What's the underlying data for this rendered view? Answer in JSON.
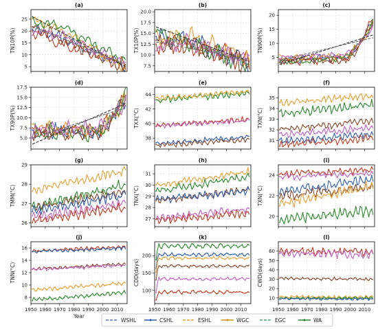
{
  "figure": {
    "xlabel": "Year",
    "legend": [
      {
        "name": "WSHL",
        "color": "#4d7fd0",
        "dash": true
      },
      {
        "name": "CSHL",
        "color": "#2e5fb0",
        "dash": false
      },
      {
        "name": "ESHL",
        "color": "#e8a030",
        "dash": true
      },
      {
        "name": "WGC",
        "color": "#d8901a",
        "dash": false
      },
      {
        "name": "EGC",
        "color": "#4aa870",
        "dash": true
      },
      {
        "name": "WA",
        "color": "#2b8a2b",
        "dash": false
      }
    ]
  },
  "chart_data": [
    {
      "type": "line",
      "title": "(a)",
      "ylabel": "TN10P(%)",
      "xlim": [
        1950,
        2017
      ],
      "ylim": [
        3,
        29
      ],
      "yticks": [
        5,
        10,
        15,
        20,
        25
      ],
      "xticks": [],
      "xticklabels": false,
      "series_style": "converging",
      "lines": [
        [
          21,
          17,
          5,
          3,
          0.8,
          "#2e5fb0"
        ],
        [
          20,
          14,
          6,
          2,
          0.8,
          "#c03a1e"
        ],
        [
          25,
          20,
          4,
          0,
          0.7,
          "#e8a030"
        ],
        [
          24,
          22,
          7,
          1,
          0.7,
          "#2b8a2b"
        ],
        [
          22,
          16,
          5,
          4,
          0.9,
          "#8a4a2a"
        ],
        [
          20,
          18,
          6,
          5,
          0.6,
          "#c060c0"
        ]
      ],
      "dashed_trends": [
        [
          26,
          5
        ],
        [
          22,
          6
        ]
      ]
    },
    {
      "type": "line",
      "title": "(b)",
      "ylabel": "TX10P(%)",
      "xlim": [
        1950,
        2017
      ],
      "ylim": [
        6.2,
        20.5
      ],
      "yticks": [
        7.5,
        10.0,
        12.5,
        15.0,
        17.5,
        20.0
      ],
      "xticks": [],
      "xticklabels": false,
      "series_style": "converging",
      "lines": [
        [
          14,
          13.5,
          8,
          3,
          0.8,
          "#2e5fb0"
        ],
        [
          13,
          12,
          8.5,
          2,
          0.8,
          "#c03a1e"
        ],
        [
          14,
          14.5,
          9,
          1,
          0.7,
          "#e8a030"
        ],
        [
          15,
          13,
          7.5,
          0,
          0.7,
          "#2b8a2b"
        ],
        [
          13,
          12.5,
          8,
          4,
          0.8,
          "#8a4a2a"
        ],
        [
          12,
          13,
          9,
          5,
          0.6,
          "#c060c0"
        ]
      ],
      "dashed_trends": [
        [
          16.5,
          8.5
        ],
        [
          13,
          9
        ]
      ]
    },
    {
      "type": "line",
      "title": "(c)",
      "ylabel": "TN90P(%)",
      "xlim": [
        1950,
        2017
      ],
      "ylim": [
        0,
        22
      ],
      "yticks": [
        5,
        10,
        15,
        20
      ],
      "xticks": [],
      "xticklabels": false,
      "series_style": "rising",
      "lines": [
        [
          4,
          5,
          18,
          3,
          0.8,
          "#2e5fb0"
        ],
        [
          3.5,
          4.5,
          19,
          2,
          0.8,
          "#c03a1e"
        ],
        [
          4.5,
          5.5,
          17,
          1,
          0.7,
          "#e8a030"
        ],
        [
          3,
          5,
          17.5,
          0,
          0.7,
          "#2b8a2b"
        ],
        [
          4,
          4,
          18,
          4,
          0.8,
          "#8a4a2a"
        ],
        [
          5,
          6,
          16,
          5,
          0.6,
          "#c060c0"
        ]
      ],
      "dashed_trends": [
        [
          2.5,
          13
        ],
        [
          4,
          12
        ]
      ]
    },
    {
      "type": "line",
      "title": "(d)",
      "ylabel": "TX90P(%)",
      "xlim": [
        1950,
        2017
      ],
      "ylim": [
        2.3,
        17.5
      ],
      "yticks": [
        5.0,
        7.5,
        10.0,
        12.5,
        15.0,
        17.5
      ],
      "xticks": [],
      "xticklabels": true,
      "series_style": "rising",
      "lines": [
        [
          7,
          6.5,
          15,
          3,
          1.2,
          "#2e5fb0"
        ],
        [
          6.5,
          7,
          15.5,
          2,
          1.1,
          "#c03a1e"
        ],
        [
          7.5,
          7,
          14.5,
          1,
          1.1,
          "#e8a030"
        ],
        [
          6,
          6.5,
          15,
          0,
          1.2,
          "#2b8a2b"
        ],
        [
          6.5,
          6,
          15.5,
          4,
          1.0,
          "#8a4a2a"
        ],
        [
          7,
          7.5,
          14,
          5,
          1.0,
          "#c060c0"
        ]
      ],
      "dashed_trends": [
        [
          3.5,
          13.5
        ],
        [
          5,
          12.5
        ]
      ]
    },
    {
      "type": "line",
      "title": "(e)",
      "ylabel": "TXX(°C)",
      "xlim": [
        1950,
        2017
      ],
      "ylim": [
        36.5,
        45
      ],
      "yticks": [
        38,
        40,
        42,
        44
      ],
      "xticks": [],
      "xticklabels": false,
      "series_style": "flat",
      "lines": [
        [
          43.2,
          44.2,
          0.25,
          "#2b8a2b"
        ],
        [
          43.5,
          44.4,
          0.2,
          "#e8a030"
        ],
        [
          39.8,
          40.6,
          0.2,
          "#c03a1e"
        ],
        [
          39.7,
          40.4,
          0.2,
          "#c060c0"
        ],
        [
          37.2,
          38.2,
          0.2,
          "#2e5fb0"
        ],
        [
          37.0,
          37.8,
          0.2,
          "#8a4a2a"
        ]
      ]
    },
    {
      "type": "line",
      "title": "(f)",
      "ylabel": "TXN(°C)",
      "xlim": [
        1950,
        2017
      ],
      "ylim": [
        30.2,
        36
      ],
      "yticks": [
        31,
        32,
        33,
        34,
        35
      ],
      "xticks": [],
      "xticklabels": false,
      "series_style": "flat",
      "lines": [
        [
          34.5,
          35.2,
          0.2,
          "#e8a030"
        ],
        [
          33.5,
          34.4,
          0.25,
          "#2b8a2b"
        ],
        [
          32.0,
          32.9,
          0.2,
          "#8a4a2a"
        ],
        [
          31.5,
          32.2,
          0.2,
          "#c060c0"
        ],
        [
          30.9,
          31.6,
          0.2,
          "#2e5fb0"
        ],
        [
          30.6,
          31.2,
          0.2,
          "#c03a1e"
        ]
      ]
    },
    {
      "type": "line",
      "title": "(g)",
      "ylabel": "TMM(°C)",
      "xlim": [
        1950,
        2017
      ],
      "ylim": [
        25.8,
        29
      ],
      "yticks": [
        26,
        27,
        28,
        29
      ],
      "xticks": [],
      "xticklabels": false,
      "series_style": "flat",
      "lines": [
        [
          27.7,
          28.7,
          0.15,
          "#e8a030"
        ],
        [
          26.8,
          28.0,
          0.15,
          "#2b8a2b"
        ],
        [
          26.8,
          27.6,
          0.15,
          "#8a4a2a"
        ],
        [
          26.6,
          27.4,
          0.15,
          "#2e5fb0"
        ],
        [
          26.3,
          27.0,
          0.15,
          "#c060c0"
        ],
        [
          26.1,
          26.8,
          0.15,
          "#c03a1e"
        ]
      ]
    },
    {
      "type": "line",
      "title": "(h)",
      "ylabel": "TNX(°C)",
      "xlim": [
        1950,
        2017
      ],
      "ylim": [
        26.3,
        31.8
      ],
      "yticks": [
        27,
        28,
        29,
        30,
        31
      ],
      "xticks": [],
      "xticklabels": false,
      "series_style": "flat",
      "lines": [
        [
          30.0,
          31.2,
          0.2,
          "#e8a030"
        ],
        [
          29.5,
          30.7,
          0.2,
          "#2b8a2b"
        ],
        [
          28.6,
          29.6,
          0.2,
          "#8a4a2a"
        ],
        [
          28.7,
          29.5,
          0.2,
          "#2e5fb0"
        ],
        [
          27.1,
          27.9,
          0.2,
          "#c060c0"
        ],
        [
          26.8,
          27.5,
          0.2,
          "#c03a1e"
        ]
      ]
    },
    {
      "type": "line",
      "title": "(i)",
      "ylabel": "TXN(°C)",
      "xlim": [
        1950,
        2017
      ],
      "ylim": [
        19,
        25
      ],
      "yticks": [
        20,
        22,
        24
      ],
      "xticks": [],
      "xticklabels": false,
      "series_style": "flat",
      "lines": [
        [
          24.1,
          24.5,
          0.2,
          "#c03a1e"
        ],
        [
          23.8,
          24.2,
          0.2,
          "#c060c0"
        ],
        [
          22.4,
          23.6,
          0.25,
          "#2e5fb0"
        ],
        [
          21.9,
          22.9,
          0.3,
          "#8a4a2a"
        ],
        [
          21.2,
          22.9,
          0.3,
          "#e8a030"
        ],
        [
          19.6,
          20.6,
          0.3,
          "#2b8a2b"
        ]
      ]
    },
    {
      "type": "line",
      "title": "(j)",
      "ylabel": "TNN(°C)",
      "xlim": [
        1950,
        2017
      ],
      "ylim": [
        7,
        17
      ],
      "yticks": [
        8,
        10,
        12,
        14,
        16
      ],
      "xticks": [
        1950,
        1960,
        1970,
        1980,
        1990,
        2000,
        2010
      ],
      "xticklabels": true,
      "series_style": "flat",
      "lines": [
        [
          15.5,
          16.2,
          0.15,
          "#c03a1e"
        ],
        [
          15.4,
          16.0,
          0.15,
          "#2e5fb0"
        ],
        [
          12.6,
          13.4,
          0.15,
          "#8a4a2a"
        ],
        [
          12.5,
          13.2,
          0.15,
          "#c060c0"
        ],
        [
          9.2,
          10.3,
          0.2,
          "#e8a030"
        ],
        [
          7.6,
          8.8,
          0.2,
          "#2b8a2b"
        ]
      ]
    },
    {
      "type": "line",
      "title": "(k)",
      "ylabel": "CDD(days)",
      "xlim": [
        1950,
        2017
      ],
      "ylim": [
        62,
        240
      ],
      "yticks": [
        100,
        150,
        200
      ],
      "xticks": [
        1950,
        1960,
        1970,
        1980,
        1990,
        2000,
        2010
      ],
      "xticklabels": true,
      "series_style": "cdd",
      "lines": [
        [
          228,
          4,
          "#2b8a2b"
        ],
        [
          203,
          3,
          "#2e5fb0"
        ],
        [
          193,
          3,
          "#e8a030"
        ],
        [
          170,
          3,
          "#8a4a2a"
        ],
        [
          133,
          3,
          "#c060c0"
        ],
        [
          95,
          3,
          "#c03a1e"
        ]
      ]
    },
    {
      "type": "line",
      "title": "(l)",
      "ylabel": "CWD(days)",
      "xlim": [
        1950,
        2017
      ],
      "ylim": [
        4,
        70
      ],
      "yticks": [
        10,
        20,
        30,
        40,
        50,
        60
      ],
      "xticks": [
        1950,
        1960,
        1970,
        1980,
        1990,
        2000,
        2010
      ],
      "xticklabels": true,
      "series_style": "flat",
      "lines": [
        [
          60,
          59,
          2.5,
          "#c03a1e"
        ],
        [
          58,
          56,
          2.5,
          "#c060c0"
        ],
        [
          31,
          30,
          1,
          "#8a4a2a"
        ],
        [
          11,
          11,
          1,
          "#e8a030"
        ],
        [
          10,
          10,
          0.8,
          "#2b8a2b"
        ],
        [
          9,
          9,
          0.8,
          "#2e5fb0"
        ]
      ]
    }
  ]
}
